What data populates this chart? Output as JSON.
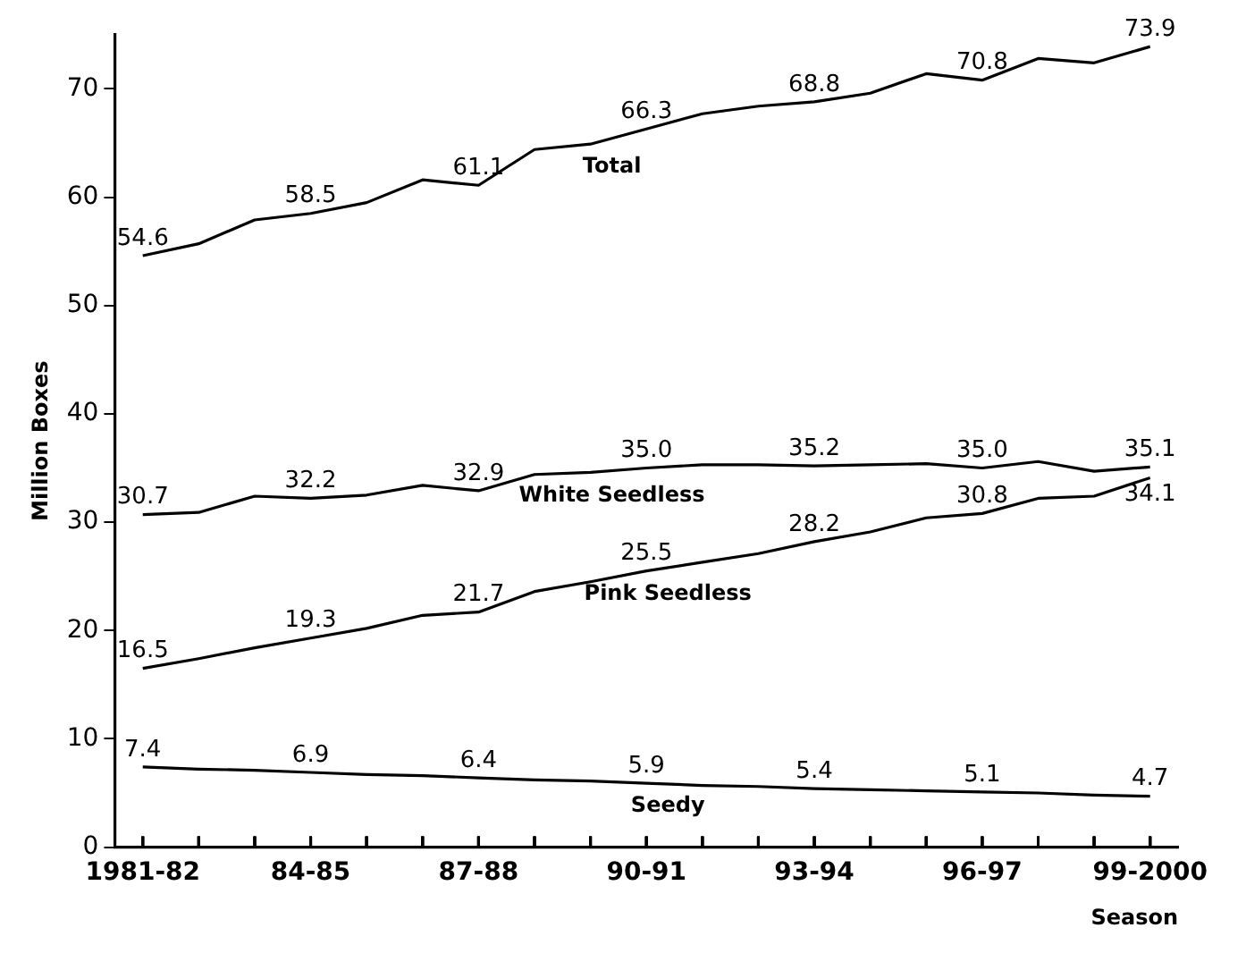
{
  "chart_data": {
    "type": "line",
    "xlabel": "Season",
    "ylabel": "Million Boxes",
    "categories": [
      "1981-82",
      null,
      null,
      "84-85",
      null,
      null,
      "87-88",
      null,
      null,
      "90-91",
      null,
      null,
      "93-94",
      null,
      null,
      "96-97",
      null,
      null,
      "99-2000"
    ],
    "series": [
      {
        "name": "Total",
        "color": "#000000",
        "values": [
          54.6,
          55.7,
          57.9,
          58.5,
          59.5,
          61.6,
          61.1,
          64.4,
          64.9,
          66.3,
          67.7,
          68.4,
          68.8,
          69.6,
          71.4,
          70.8,
          72.8,
          72.4,
          73.9
        ],
        "value_labels": [
          "54.6",
          null,
          null,
          "58.5",
          null,
          null,
          "61.1",
          null,
          null,
          "66.3",
          null,
          null,
          "68.8",
          null,
          null,
          "70.8",
          null,
          null,
          "73.9"
        ]
      },
      {
        "name": "White Seedless",
        "color": "#000000",
        "values": [
          30.7,
          30.9,
          32.4,
          32.2,
          32.5,
          33.4,
          32.9,
          34.4,
          34.6,
          35.0,
          35.3,
          35.3,
          35.2,
          35.3,
          35.4,
          35.0,
          35.6,
          34.7,
          35.1
        ],
        "value_labels": [
          "30.7",
          null,
          null,
          "32.2",
          null,
          null,
          "32.9",
          null,
          null,
          "35.0",
          null,
          null,
          "35.2",
          null,
          null,
          "35.0",
          null,
          null,
          "35.1"
        ]
      },
      {
        "name": "Pink Seedless",
        "color": "#000000",
        "values": [
          16.5,
          17.4,
          18.4,
          19.3,
          20.2,
          21.4,
          21.7,
          23.6,
          24.5,
          25.5,
          26.3,
          27.1,
          28.2,
          29.1,
          30.4,
          30.8,
          32.2,
          32.4,
          34.1
        ],
        "value_labels": [
          "16.5",
          null,
          null,
          "19.3",
          null,
          null,
          "21.7",
          null,
          null,
          "25.5",
          null,
          null,
          "28.2",
          null,
          null,
          "30.8",
          null,
          null,
          "34.1"
        ]
      },
      {
        "name": "Seedy",
        "color": "#000000",
        "values": [
          7.4,
          7.2,
          7.1,
          6.9,
          6.7,
          6.6,
          6.4,
          6.2,
          6.1,
          5.9,
          5.7,
          5.6,
          5.4,
          5.3,
          5.2,
          5.1,
          5.0,
          4.8,
          4.7
        ],
        "value_labels": [
          "7.4",
          null,
          null,
          "6.9",
          null,
          null,
          "6.4",
          null,
          null,
          "5.9",
          null,
          null,
          "5.4",
          null,
          null,
          "5.1",
          null,
          null,
          "4.7"
        ]
      }
    ],
    "ylim": [
      0,
      75
    ],
    "yticks": [
      0,
      10,
      20,
      30,
      40,
      50,
      60,
      70
    ],
    "grid": false,
    "legend": false,
    "marker": "none",
    "line_style": "solid"
  }
}
